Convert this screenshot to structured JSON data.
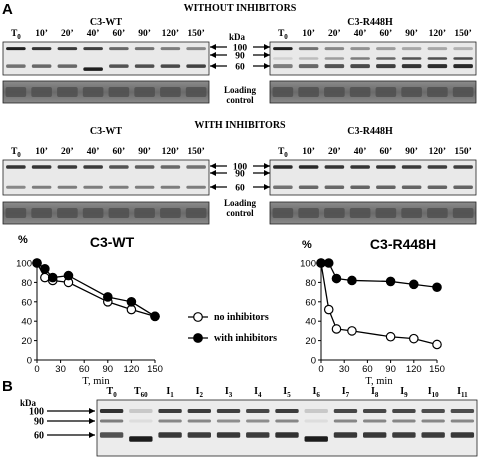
{
  "panel_labels": {
    "a": "A",
    "b": "B"
  },
  "headings": {
    "without": "WITHOUT INHIBITORS",
    "with": "WITH INHIBITORS"
  },
  "construct_labels": {
    "wt": "C3-WT",
    "r448h": "C3-R448H"
  },
  "timepoints": [
    "T0",
    "10’",
    "20’",
    "40’",
    "60’",
    "90’",
    "120’",
    "150’"
  ],
  "kda_label": "kDa",
  "markers": [
    "100",
    "90",
    "60"
  ],
  "loading_control": [
    "Loading",
    "control"
  ],
  "panel_b_lanes": [
    "T0",
    "T60",
    "I1",
    "I2",
    "I3",
    "I4",
    "I5",
    "I6",
    "I7",
    "I8",
    "I9",
    "I10",
    "I11"
  ],
  "legend": {
    "open": "no inhibitors",
    "filled": "with inhibitors"
  },
  "chart_data": [
    {
      "type": "line",
      "title": "C3-WT",
      "ylabel": "%",
      "xlabel": "T, min",
      "xlim": [
        0,
        150
      ],
      "ylim": [
        0,
        100
      ],
      "x_ticks": [
        0,
        30,
        60,
        90,
        120,
        150
      ],
      "y_ticks": [
        0,
        20,
        40,
        60,
        80,
        100
      ],
      "series": [
        {
          "name": "no inhibitors",
          "marker": "open",
          "x": [
            0,
            10,
            20,
            40,
            90,
            120,
            150
          ],
          "y": [
            100,
            85,
            82,
            80,
            60,
            52,
            45
          ]
        },
        {
          "name": "with inhibitors",
          "marker": "filled",
          "x": [
            0,
            10,
            20,
            40,
            90,
            120,
            150
          ],
          "y": [
            100,
            94,
            85,
            87,
            65,
            60,
            45
          ]
        }
      ]
    },
    {
      "type": "line",
      "title": "C3-R448H",
      "ylabel": "%",
      "xlabel": "T, min",
      "xlim": [
        0,
        150
      ],
      "ylim": [
        0,
        100
      ],
      "x_ticks": [
        0,
        30,
        60,
        90,
        120,
        150
      ],
      "y_ticks": [
        0,
        20,
        40,
        60,
        80,
        100
      ],
      "series": [
        {
          "name": "no inhibitors",
          "marker": "open",
          "x": [
            0,
            10,
            20,
            40,
            90,
            120,
            150
          ],
          "y": [
            100,
            52,
            32,
            30,
            24,
            22,
            16
          ]
        },
        {
          "name": "with inhibitors",
          "marker": "filled",
          "x": [
            0,
            10,
            20,
            40,
            90,
            120,
            150
          ],
          "y": [
            100,
            100,
            84,
            82,
            81,
            78,
            75
          ]
        }
      ]
    }
  ]
}
